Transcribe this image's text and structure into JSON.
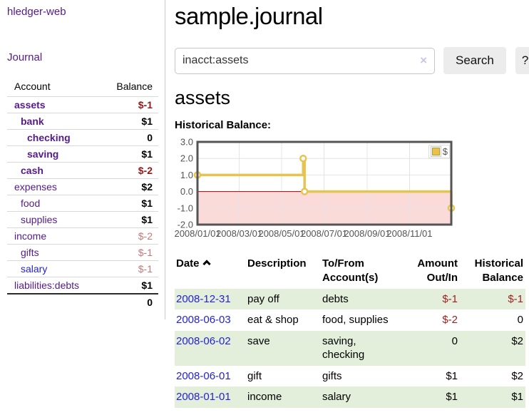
{
  "app": {
    "brand": "hledger-web"
  },
  "nav": {
    "journal": "Journal"
  },
  "sidebar": {
    "headers": {
      "account": "Account",
      "balance": "Balance"
    },
    "rows": [
      {
        "label": "assets",
        "indent": 0,
        "bold": true,
        "balance": "$-1",
        "neg": "strong"
      },
      {
        "label": "bank",
        "indent": 1,
        "bold": true,
        "balance": "$1"
      },
      {
        "label": "checking",
        "indent": 2,
        "bold": true,
        "balance": "0"
      },
      {
        "label": "saving",
        "indent": 2,
        "bold": true,
        "balance": "$1"
      },
      {
        "label": "cash",
        "indent": 1,
        "bold": true,
        "balance": "$-2",
        "neg": "strong"
      },
      {
        "label": "expenses",
        "indent": 0,
        "bold": false,
        "balance": "$2"
      },
      {
        "label": "food",
        "indent": 1,
        "bold": false,
        "balance": "$1"
      },
      {
        "label": "supplies",
        "indent": 1,
        "bold": false,
        "balance": "$1"
      },
      {
        "label": "income",
        "indent": 0,
        "bold": false,
        "balance": "$-2",
        "neg": "soft"
      },
      {
        "label": "gifts",
        "indent": 1,
        "bold": false,
        "balance": "$-1",
        "neg": "soft"
      },
      {
        "label": "salary",
        "indent": 1,
        "bold": false,
        "balance": "$-1",
        "neg": "soft",
        "unvisited": true
      },
      {
        "label": "liabilities:debts",
        "indent": 0,
        "bold": false,
        "balance": "$1"
      }
    ],
    "total": "0"
  },
  "header": {
    "title": "sample.journal"
  },
  "search": {
    "value": "inacct:assets",
    "clear_icon": "×",
    "search_button": "Search",
    "help_button": "?"
  },
  "account_page": {
    "title": "assets",
    "chart_heading": "Historical Balance:"
  },
  "chart_data": {
    "type": "line",
    "step": true,
    "title": "Historical Balance",
    "x_ticks": [
      "2008/01/01",
      "2008/03/01",
      "2008/05/01",
      "2008/07/01",
      "2008/09/01",
      "2008/11/01"
    ],
    "y_ticks": [
      "3.0",
      "2.0",
      "1.0",
      "0.0",
      "-1.0",
      "-2.0"
    ],
    "ylim": [
      -2,
      3
    ],
    "x_range": [
      "2008/01/01",
      "2008/12/31"
    ],
    "legend_position": "top-right",
    "grid": true,
    "series": [
      {
        "name": "$",
        "color": "#e7c44f",
        "points": [
          [
            "2008/01/01",
            1
          ],
          [
            "2008/06/01",
            2
          ],
          [
            "2008/06/03",
            0
          ],
          [
            "2008/12/31",
            -1
          ]
        ]
      }
    ],
    "styles": {
      "negative_fill": "#fbdada",
      "zero_line": "#a40000",
      "grid_color": "#e4e4e4",
      "border": "#545454",
      "tick_text": "#545454",
      "marker_fill": "#ffffff"
    }
  },
  "register": {
    "headers": {
      "date": "Date",
      "sort_icon": "chevron-up",
      "description": "Description",
      "accounts": "To/From Account(s)",
      "amount": "Amount Out/In",
      "balance": "Historical Balance"
    },
    "rows": [
      {
        "date": "2008-12-31",
        "description": "pay off",
        "accounts": "debts",
        "amount": "$-1",
        "balance": "$-1"
      },
      {
        "date": "2008-06-03",
        "description": "eat & shop",
        "accounts": "food, supplies",
        "amount": "$-2",
        "balance": "0"
      },
      {
        "date": "2008-06-02",
        "description": "save",
        "accounts": "saving, checking",
        "amount": "0",
        "balance": "$2"
      },
      {
        "date": "2008-06-01",
        "description": "gift",
        "accounts": "gifts",
        "amount": "$1",
        "balance": "$2"
      },
      {
        "date": "2008-01-01",
        "description": "income",
        "accounts": "salary",
        "amount": "$1",
        "balance": "$1"
      }
    ]
  }
}
